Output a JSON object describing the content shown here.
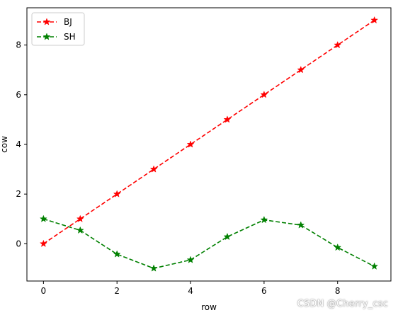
{
  "chart_data": {
    "type": "line",
    "x": [
      0,
      1,
      2,
      3,
      4,
      5,
      6,
      7,
      8,
      9
    ],
    "series": [
      {
        "name": "BJ",
        "color": "#ff0000",
        "line_style": "dashed",
        "marker": "star",
        "values": [
          0,
          1,
          2,
          3,
          4,
          5,
          6,
          7,
          8,
          9
        ]
      },
      {
        "name": "SH",
        "color": "#008000",
        "line_style": "dashed",
        "marker": "star",
        "values": [
          1.0,
          0.54,
          -0.42,
          -0.99,
          -0.65,
          0.28,
          0.96,
          0.75,
          -0.15,
          -0.91
        ]
      }
    ],
    "xlabel": "row",
    "ylabel": "cow",
    "xlim": [
      -0.45,
      9.45
    ],
    "ylim": [
      -1.5,
      9.5
    ],
    "xticks": [
      0,
      2,
      4,
      6,
      8
    ],
    "yticks": [
      0,
      2,
      4,
      6,
      8
    ],
    "grid": false,
    "legend_position": "upper-left"
  },
  "watermark": "CSDN @Cherry_csc"
}
